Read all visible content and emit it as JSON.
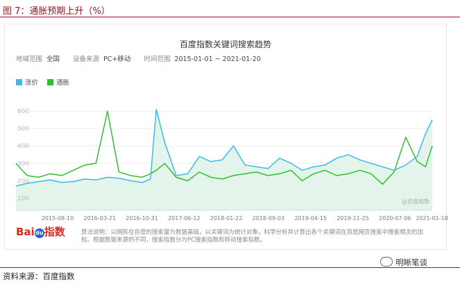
{
  "figure": {
    "title": "图 7：通胀预期上升（%）",
    "source": "资料来源：百度指数",
    "brand": "明晰笔谈"
  },
  "panel": {
    "title": "百度指数关键词搜索趋势",
    "filters": [
      {
        "label": "地域范围",
        "value": "全国"
      },
      {
        "label": "设备来源",
        "value": "PC+移动"
      },
      {
        "label": "时间范围",
        "value": "2015-01-01 ~ 2021-01-20"
      }
    ],
    "note": "算法说明：以网民在百度的搜索量为数据基础，以关键词为统计对象，科学分析并计算出各个关键词在百度网页搜索中搜索频次的加权。根据数据来源的不同，搜索指数分为PC搜索指数和移动搜索指数。",
    "watermark": "@百度指数",
    "logo": {
      "text1": "Bai",
      "text2": "du",
      "text3": "指数"
    }
  },
  "colors": {
    "series1": "#3cb9ea",
    "series2": "#2fbf2f",
    "area": "#e3f5ea",
    "grid": "#eeeeee",
    "accent": "#a0141e"
  },
  "chart_data": {
    "type": "line",
    "title": "百度指数关键词搜索趋势",
    "x_range": [
      "2015-01-01",
      "2021-01-20"
    ],
    "x_ticks": [
      "2015-08-10",
      "2016-03-21",
      "2016-10-31",
      "2017-06-12",
      "2018-01-22",
      "2018-09-03",
      "2019-04-15",
      "2019-11-25",
      "2020-07-06",
      "2021-01-18"
    ],
    "y_ticks": [
      100,
      200,
      300,
      400,
      500,
      600
    ],
    "ylim": [
      30,
      700
    ],
    "grid": true,
    "legend_position": "top-left",
    "series": [
      {
        "name": "涨价",
        "x": [
          "2015-01-01",
          "2015-03-01",
          "2015-05-01",
          "2015-07-01",
          "2015-09-01",
          "2015-11-01",
          "2016-01-01",
          "2016-03-01",
          "2016-05-01",
          "2016-07-01",
          "2016-09-01",
          "2016-11-01",
          "2016-12-15",
          "2017-01-15",
          "2017-03-01",
          "2017-05-01",
          "2017-07-01",
          "2017-09-01",
          "2017-11-01",
          "2018-01-01",
          "2018-03-01",
          "2018-05-01",
          "2018-07-01",
          "2018-09-01",
          "2018-11-01",
          "2019-01-01",
          "2019-03-01",
          "2019-05-01",
          "2019-07-01",
          "2019-09-01",
          "2019-11-01",
          "2020-01-01",
          "2020-03-01",
          "2020-05-01",
          "2020-07-01",
          "2020-09-01",
          "2020-11-01",
          "2020-12-15",
          "2021-01-20"
        ],
        "y": [
          170,
          185,
          195,
          205,
          190,
          195,
          210,
          205,
          220,
          215,
          200,
          190,
          210,
          610,
          420,
          230,
          240,
          340,
          310,
          320,
          400,
          290,
          280,
          270,
          330,
          300,
          260,
          280,
          290,
          330,
          350,
          320,
          300,
          280,
          260,
          290,
          340,
          470,
          550
        ]
      },
      {
        "name": "通胀",
        "x": [
          "2015-01-01",
          "2015-03-01",
          "2015-05-01",
          "2015-07-01",
          "2015-09-01",
          "2015-11-01",
          "2016-01-01",
          "2016-03-01",
          "2016-05-01",
          "2016-07-01",
          "2016-09-01",
          "2016-11-01",
          "2016-12-15",
          "2017-01-15",
          "2017-03-01",
          "2017-05-01",
          "2017-07-01",
          "2017-09-01",
          "2017-11-01",
          "2018-01-01",
          "2018-03-01",
          "2018-05-01",
          "2018-07-01",
          "2018-09-01",
          "2018-11-01",
          "2019-01-01",
          "2019-03-01",
          "2019-05-01",
          "2019-07-01",
          "2019-09-01",
          "2019-11-01",
          "2020-01-01",
          "2020-03-01",
          "2020-05-01",
          "2020-07-01",
          "2020-09-01",
          "2020-11-01",
          "2020-12-15",
          "2021-01-20"
        ],
        "y": [
          300,
          230,
          220,
          240,
          230,
          260,
          290,
          300,
          600,
          250,
          230,
          220,
          240,
          260,
          300,
          220,
          200,
          250,
          220,
          210,
          230,
          240,
          250,
          230,
          240,
          260,
          200,
          240,
          260,
          230,
          240,
          260,
          240,
          180,
          250,
          450,
          310,
          280,
          400
        ]
      }
    ]
  }
}
